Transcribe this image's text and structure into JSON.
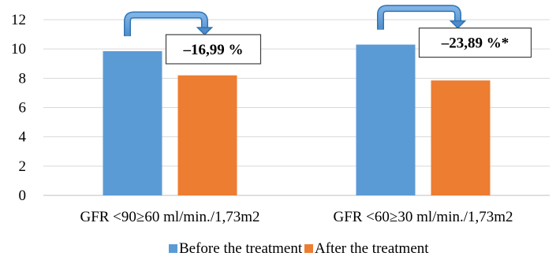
{
  "chart_data": {
    "type": "bar",
    "title": "",
    "xlabel": "",
    "ylabel": "",
    "ylim": [
      0,
      12
    ],
    "yticks": [
      0,
      2,
      4,
      6,
      8,
      10,
      12
    ],
    "grid": true,
    "legend_position": "bottom",
    "categories": [
      "GFR <90≥60 ml/min./1,73m2",
      "GFR <60≥30 ml/min./1,73m2"
    ],
    "series": [
      {
        "name": "Before the treatment",
        "color": "#5B9BD5",
        "values": [
          9.85,
          10.3
        ]
      },
      {
        "name": "After the treatment",
        "color": "#ED7D31",
        "values": [
          8.2,
          7.85
        ]
      }
    ],
    "annotations": [
      {
        "category_index": 0,
        "text": "–16,99 %"
      },
      {
        "category_index": 1,
        "text": "–23,89 %*"
      }
    ]
  }
}
